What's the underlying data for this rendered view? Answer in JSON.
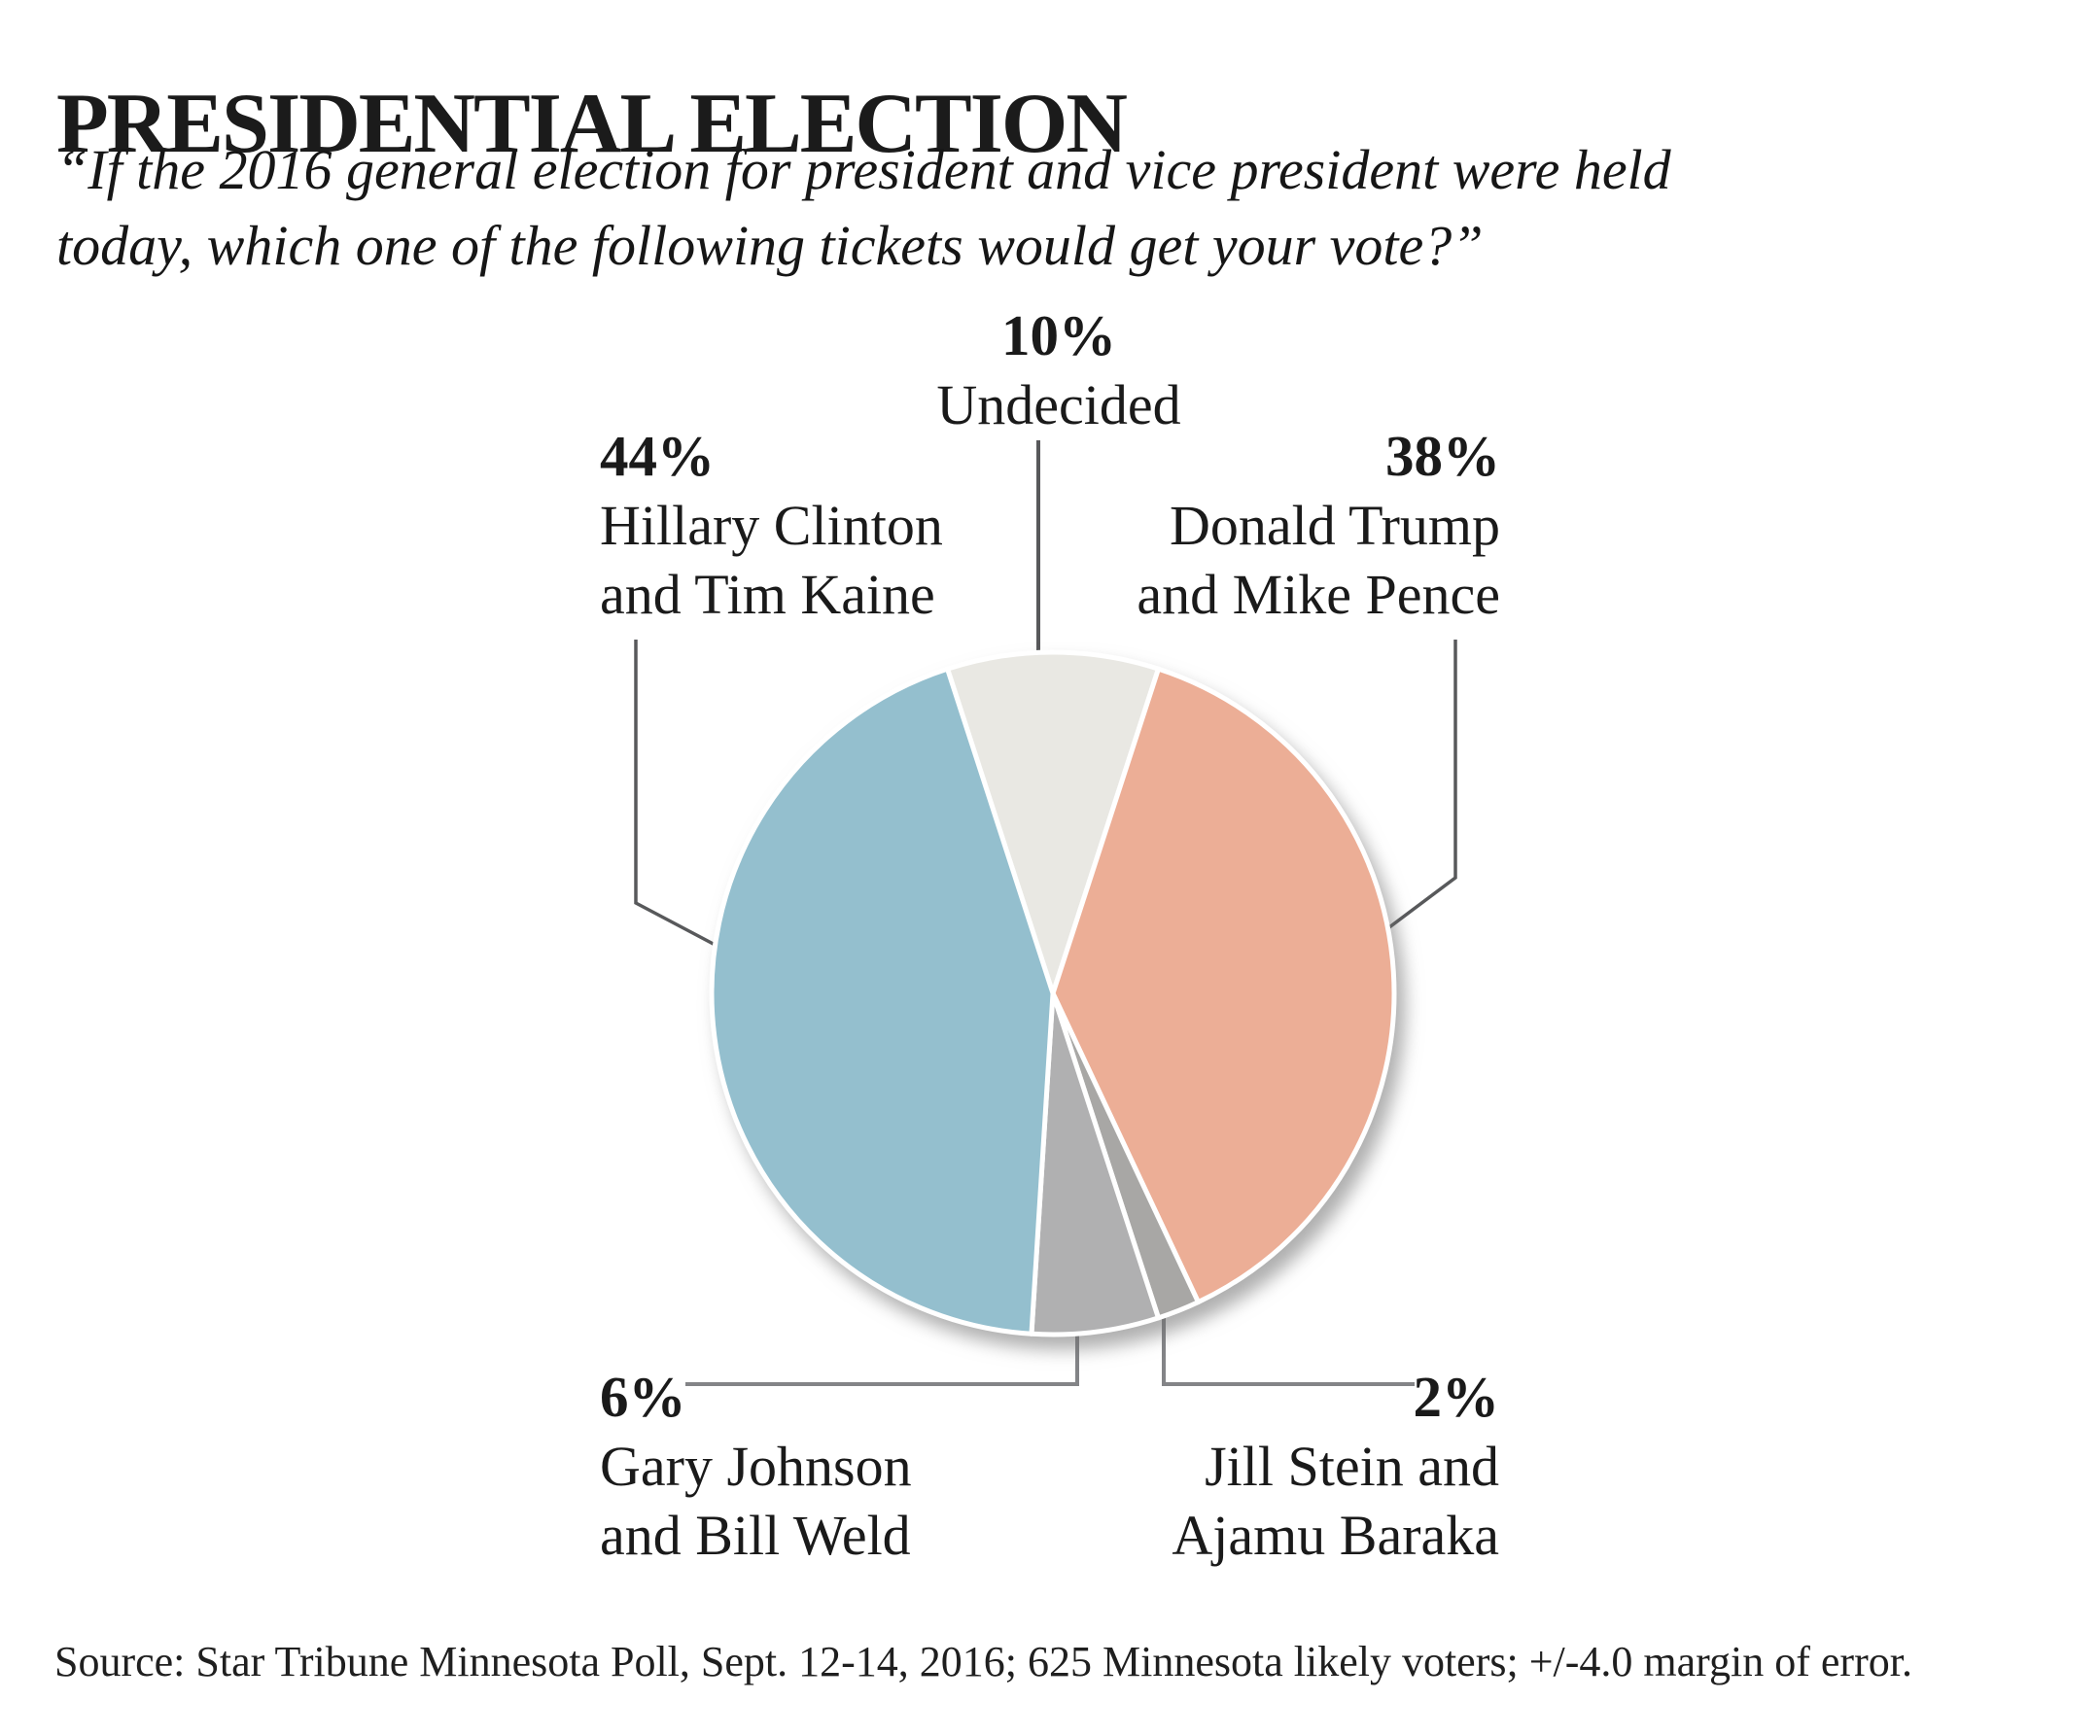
{
  "title": "PRESIDENTIAL ELECTION",
  "subtitle": {
    "line1": "“If the 2016 general election for president and vice president were held",
    "line2": "today, which one of the following tickets would get your vote?”"
  },
  "source": "Source: Star Tribune Minnesota Poll, Sept. 12-14, 2016; 625 Minnesota likely voters; +/-4.0 margin of error.",
  "labels": {
    "undecided": {
      "pct": "10%",
      "name": "Undecided"
    },
    "clinton": {
      "pct": "44%",
      "line1": "Hillary Clinton",
      "line2": "and Tim Kaine"
    },
    "trump": {
      "pct": "38%",
      "line1": "Donald Trump",
      "line2": "and Mike Pence"
    },
    "johnson": {
      "pct": "6%",
      "line1": "Gary Johnson",
      "line2": "and Bill Weld"
    },
    "stein": {
      "pct": "2%",
      "line1": "Jill Stein and",
      "line2": "Ajamu Baraka"
    }
  },
  "chart_data": {
    "type": "pie",
    "title": "PRESIDENTIAL ELECTION",
    "question": "If the 2016 general election for president and vice president were held today, which one of the following tickets would get your vote?",
    "direction": "clockwise",
    "start_angle_deg": -18,
    "separator_color": "#ffffff",
    "slices": [
      {
        "label": "Undecided",
        "value": 10,
        "color": "#e9e8e3"
      },
      {
        "label": "Donald Trump and Mike Pence",
        "value": 38,
        "color": "#ecae96"
      },
      {
        "label": "Jill Stein and Ajamu Baraka",
        "value": 2,
        "color": "#a8a7a5"
      },
      {
        "label": "Gary Johnson and Bill Weld",
        "value": 6,
        "color": "#b0b0b1"
      },
      {
        "label": "Hillary Clinton and Tim Kaine",
        "value": 44,
        "color": "#94bfce"
      }
    ],
    "source": "Star Tribune Minnesota Poll, Sept. 12-14, 2016; 625 Minnesota likely voters; +/-4.0 margin of error."
  }
}
